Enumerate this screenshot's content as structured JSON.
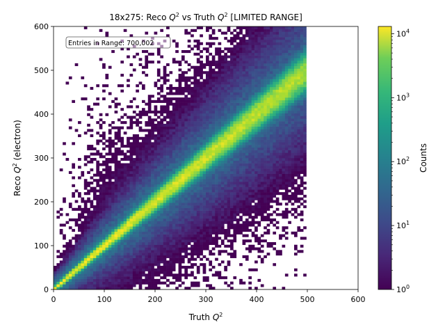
{
  "chart_data": {
    "type": "heatmap",
    "title_prefix": "18x275: Reco ",
    "title_mid": " vs Truth ",
    "title_suffix": " [LIMITED RANGE]",
    "title_q": "Q",
    "title_exp": "2",
    "xlabel_prefix": "Truth ",
    "xlabel_q": "Q",
    "xlabel_exp": "2",
    "ylabel_prefix": "Reco ",
    "ylabel_q": "Q",
    "ylabel_exp": "2",
    "ylabel_suffix": " (electron)",
    "xlim": [
      0,
      600
    ],
    "ylim": [
      0,
      600
    ],
    "xticks": [
      "0",
      "100",
      "200",
      "300",
      "400",
      "500",
      "600"
    ],
    "yticks": [
      "0",
      "100",
      "200",
      "300",
      "400",
      "500",
      "600"
    ],
    "annotation": "Entries in Range: 700,002",
    "colorbar": {
      "label": "Counts",
      "scale": "log",
      "range": [
        1,
        13000
      ],
      "colormap": "viridis",
      "tick_values": [
        1,
        10,
        100,
        1000,
        10000
      ],
      "tick_labels": [
        {
          "base": "10",
          "exp": "0"
        },
        {
          "base": "10",
          "exp": "1"
        },
        {
          "base": "10",
          "exp": "2"
        },
        {
          "base": "10",
          "exp": "3"
        },
        {
          "base": "10",
          "exp": "4"
        }
      ]
    },
    "data_range": {
      "truth_q2": [
        0,
        500
      ],
      "reco_q2": [
        0,
        600
      ]
    },
    "diagonal_peak_counts": 13000,
    "bins": 100
  }
}
